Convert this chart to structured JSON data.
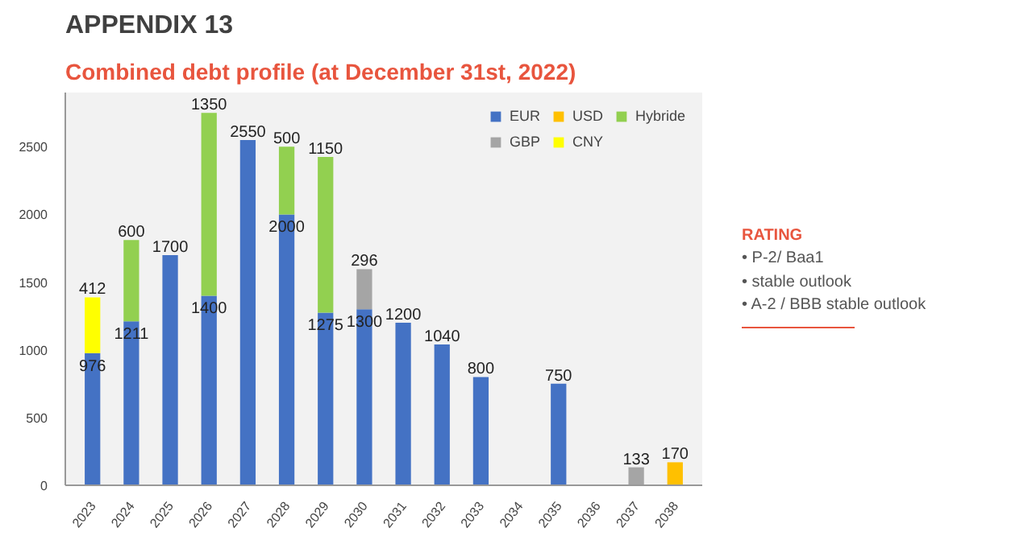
{
  "chart_data": {
    "type": "bar",
    "stacked": true,
    "title": "APPENDIX 13",
    "subtitle": "Combined debt profile (at December 31st, 2022)",
    "categories": [
      "2023",
      "2024",
      "2025",
      "2026",
      "2027",
      "2028",
      "2029",
      "2030",
      "2031",
      "2032",
      "2033",
      "2034",
      "2035",
      "2036",
      "2037",
      "2038"
    ],
    "series": [
      {
        "name": "EUR",
        "color": "#4472c4",
        "values": [
          976,
          1211,
          1700,
          1400,
          2550,
          2000,
          1275,
          1300,
          1200,
          1040,
          800,
          null,
          750,
          null,
          null,
          null
        ]
      },
      {
        "name": "GBP",
        "color": "#a5a5a5",
        "values": [
          null,
          null,
          null,
          null,
          null,
          null,
          null,
          296,
          null,
          null,
          null,
          null,
          null,
          null,
          133,
          null
        ]
      },
      {
        "name": "USD",
        "color": "#ffc000",
        "values": [
          null,
          null,
          null,
          null,
          null,
          null,
          null,
          null,
          null,
          null,
          null,
          null,
          null,
          null,
          null,
          170
        ]
      },
      {
        "name": "CNY",
        "color": "#ffff00",
        "values": [
          412,
          null,
          null,
          null,
          null,
          null,
          null,
          null,
          null,
          null,
          null,
          null,
          null,
          null,
          null,
          null
        ]
      },
      {
        "name": "Hybride",
        "color": "#92d050",
        "values": [
          null,
          600,
          null,
          1350,
          null,
          500,
          1150,
          null,
          null,
          null,
          null,
          null,
          null,
          null,
          null,
          null
        ]
      }
    ],
    "ylim": [
      0,
      2900
    ],
    "yticks": [
      0,
      500,
      1000,
      1500,
      2000,
      2500
    ],
    "grid": false,
    "legend": "top right",
    "data_labels": true,
    "annotations": [
      "RATING",
      "• P-2/ Baa1",
      "• stable outlook",
      "• A-2 / BBB stable outlook"
    ]
  }
}
